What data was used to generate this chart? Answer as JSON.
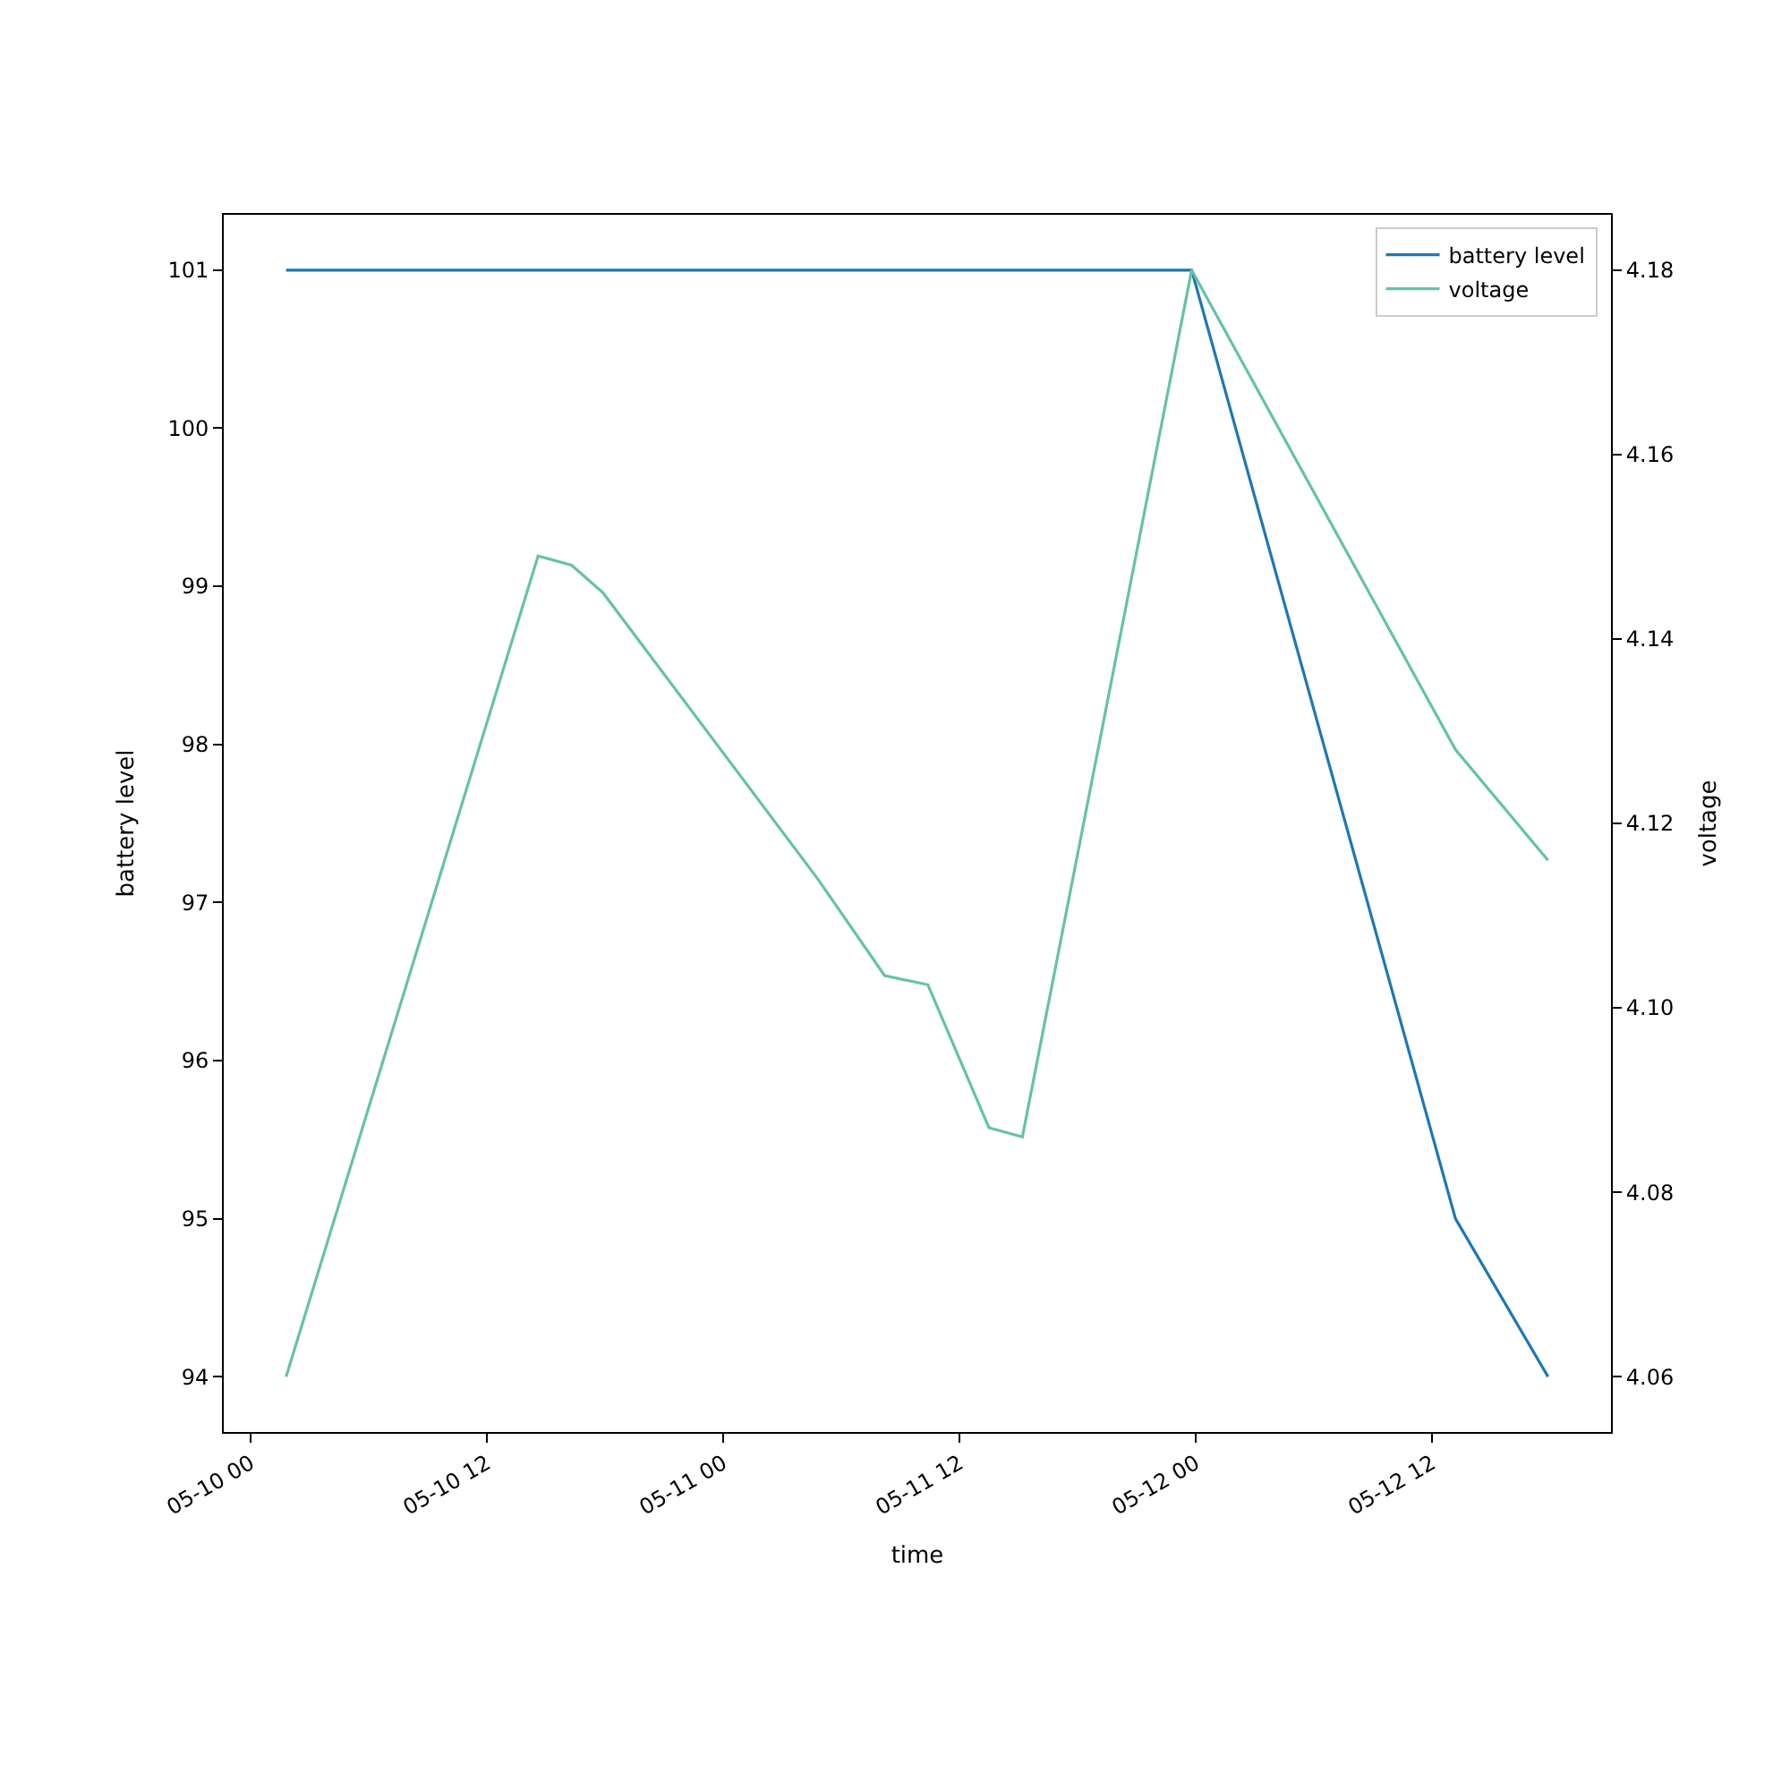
{
  "chart_data": {
    "type": "line",
    "xlabel": "time",
    "ylabel": "battery level",
    "y2label": "voltage",
    "series": [
      {
        "name": "battery level",
        "color": "#1f77b4",
        "axis": "y",
        "x": [
          "--05-10T01:48",
          "--05-11T23:48",
          "--05-12T13:12",
          "--05-12T17:54"
        ],
        "values": [
          101,
          101,
          95,
          94
        ]
      },
      {
        "name": "voltage",
        "color": "#66c2a5",
        "axis": "y2",
        "x": [
          "--05-10T01:48",
          "--05-10T14:36",
          "--05-10T16:18",
          "--05-10T17:54",
          "--05-11T04:48",
          "--05-11T08:12",
          "--05-11T10:24",
          "--05-11T13:30",
          "--05-11T15:12",
          "--05-11T23:48",
          "--05-12T13:12",
          "--05-12T17:54"
        ],
        "values": [
          4.06,
          4.149,
          4.148,
          4.145,
          4.114,
          4.1035,
          4.1025,
          4.087,
          4.086,
          4.18,
          4.128,
          4.116
        ]
      }
    ],
    "xlim": [
      "--05-09T22:38",
      "--05-12T21:06"
    ],
    "xticks": [
      {
        "value": "--05-10T00:00",
        "label": "05-10 00"
      },
      {
        "value": "--05-10T12:00",
        "label": "05-10 12"
      },
      {
        "value": "--05-11T00:00",
        "label": "05-11 00"
      },
      {
        "value": "--05-11T12:00",
        "label": "05-11 12"
      },
      {
        "value": "--05-12T00:00",
        "label": "05-12 00"
      },
      {
        "value": "--05-12T12:00",
        "label": "05-12 12"
      }
    ],
    "ylim": [
      93.65,
      101.35
    ],
    "yticks": [
      94,
      95,
      96,
      97,
      98,
      99,
      100,
      101
    ],
    "y2lim": [
      4.054,
      4.186
    ],
    "y2ticks": [
      {
        "value": 4.06,
        "label": "4.06"
      },
      {
        "value": 4.08,
        "label": "4.08"
      },
      {
        "value": 4.1,
        "label": "4.10"
      },
      {
        "value": 4.12,
        "label": "4.12"
      },
      {
        "value": 4.14,
        "label": "4.14"
      },
      {
        "value": 4.16,
        "label": "4.16"
      },
      {
        "value": 4.18,
        "label": "4.18"
      }
    ],
    "legend": "top right",
    "marker": "none",
    "line_style": "solid"
  }
}
